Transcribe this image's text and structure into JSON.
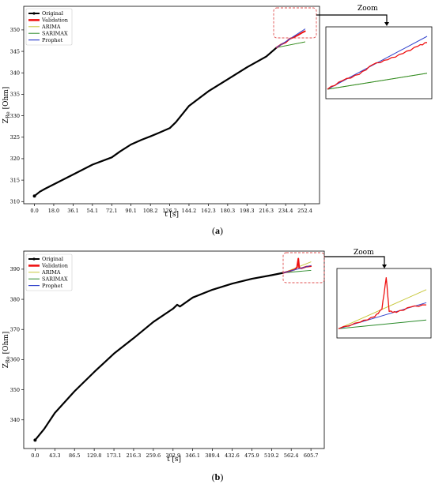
{
  "chart_data": [
    {
      "id": "a",
      "type": "line",
      "caption": "(a)",
      "xlabel": "t [s]",
      "ylabel": "Z_Re [Ohm]",
      "xlim": [
        -10,
        266
      ],
      "ylim": [
        309.5,
        355.5
      ],
      "xticks": [
        "0.0",
        "18.0",
        "36.1",
        "54.1",
        "72.1",
        "90.1",
        "108.2",
        "126.2",
        "144.2",
        "162.3",
        "180.3",
        "198.3",
        "216.3",
        "234.4",
        "252.4"
      ],
      "yticks": [
        310,
        315,
        320,
        325,
        330,
        335,
        340,
        345,
        350
      ],
      "legend": [
        "Original",
        "Validation",
        "ARIMA",
        "SARIMAX",
        "Prophet"
      ],
      "legend_position": "top-left",
      "zoom_label": "Zoom",
      "colors": {
        "original": "#000000",
        "validation": "#ee1111",
        "arima": "#c8c83c",
        "sarimax": "#2a8a2a",
        "prophet": "#3344cc",
        "zoom_box": "#e05050"
      },
      "series": [
        {
          "name": "Original",
          "x": [
            0,
            5,
            10,
            18,
            36.1,
            54.1,
            72.1,
            80,
            90.1,
            100,
            108.2,
            115,
            126.2,
            132,
            144.2,
            162.3,
            180.3,
            198.3,
            216.3,
            226
          ],
          "y": [
            311.3,
            312.3,
            313,
            314,
            316.3,
            318.6,
            320.3,
            321.7,
            323.3,
            324.4,
            325.2,
            325.9,
            327.1,
            328.5,
            332.3,
            335.7,
            338.5,
            341.3,
            343.8,
            345.9
          ]
        },
        {
          "name": "Validation",
          "x": [
            226,
            230,
            234.4,
            238,
            242,
            246,
            250,
            252.4
          ],
          "y": [
            345.9,
            346.6,
            347.1,
            347.9,
            348.3,
            348.8,
            349.4,
            349.7
          ]
        },
        {
          "name": "ARIMA",
          "x": [
            226,
            252.4
          ],
          "y": [
            345.9,
            347.2
          ]
        },
        {
          "name": "SARIMAX",
          "x": [
            226,
            252.4
          ],
          "y": [
            345.9,
            347.2
          ]
        },
        {
          "name": "Prophet",
          "x": [
            226,
            252.4
          ],
          "y": [
            345.9,
            350.2
          ]
        }
      ]
    },
    {
      "id": "b",
      "type": "line",
      "caption": "(b)",
      "xlabel": "t [s]",
      "ylabel": "Z_Re [Ohm]",
      "xlim": [
        -25,
        635
      ],
      "ylim": [
        330.5,
        396
      ],
      "xticks": [
        "0.0",
        "43.3",
        "86.5",
        "129.8",
        "173.1",
        "216.3",
        "259.6",
        "302.9",
        "346.1",
        "389.4",
        "432.6",
        "475.9",
        "519.2",
        "562.4",
        "605.7"
      ],
      "yticks": [
        340,
        350,
        360,
        370,
        380,
        390
      ],
      "legend": [
        "Original",
        "Validation",
        "ARIMA",
        "SARIMAX",
        "Prophet"
      ],
      "legend_position": "top-left",
      "zoom_label": "Zoom",
      "colors": {
        "original": "#000000",
        "validation": "#ee1111",
        "arima": "#c8c83c",
        "sarimax": "#2a8a2a",
        "prophet": "#3344cc",
        "zoom_box": "#e05050"
      },
      "series": [
        {
          "name": "Original",
          "x": [
            0,
            20,
            43.3,
            86.5,
            129.8,
            173.1,
            216.3,
            259.6,
            302.9,
            312,
            318,
            346.1,
            389.4,
            432.6,
            475.9,
            519.2,
            545
          ],
          "y": [
            333.3,
            337,
            342.3,
            349.5,
            355.9,
            362,
            367.1,
            372.5,
            376.9,
            378.2,
            377.6,
            380.6,
            383.2,
            385.2,
            386.8,
            388,
            388.8
          ]
        },
        {
          "name": "Validation",
          "x": [
            545,
            560,
            570,
            575,
            578,
            580,
            585,
            595,
            605.7
          ],
          "y": [
            388.8,
            389.4,
            389.9,
            390.6,
            393.5,
            390.4,
            390.3,
            390.8,
            391
          ]
        },
        {
          "name": "ARIMA",
          "x": [
            545,
            605.7
          ],
          "y": [
            388.8,
            392.4
          ]
        },
        {
          "name": "SARIMAX",
          "x": [
            545,
            605.7
          ],
          "y": [
            388.8,
            389.6
          ]
        },
        {
          "name": "Prophet",
          "x": [
            545,
            605.7
          ],
          "y": [
            388.8,
            391.2
          ]
        }
      ]
    }
  ]
}
